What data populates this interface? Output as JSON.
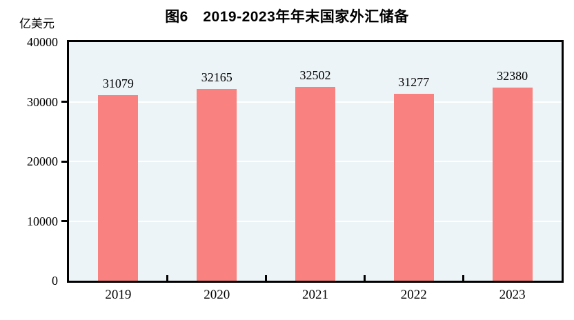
{
  "chart_data": {
    "type": "bar",
    "title": "图6　2019-2023年年末国家外汇储备",
    "unit_label": "亿美元",
    "categories": [
      "2019",
      "2020",
      "2021",
      "2022",
      "2023"
    ],
    "values": [
      31079,
      32165,
      32502,
      31277,
      32380
    ],
    "ylim": [
      0,
      40000
    ],
    "yticks": [
      0,
      10000,
      20000,
      30000,
      40000
    ],
    "grid": "horizontal white gridlines at each 10000",
    "legend_position": "none",
    "colors": {
      "bar": "#f98280",
      "plot_background": "#ecf4f7",
      "gridline": "#ffffff",
      "axis": "#000000",
      "text": "#000000"
    }
  }
}
